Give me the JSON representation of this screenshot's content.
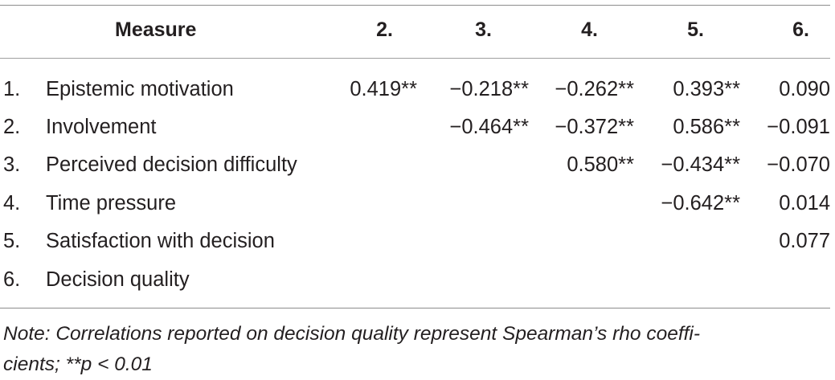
{
  "table": {
    "header": {
      "measure": "Measure",
      "columns": [
        "2.",
        "3.",
        "4.",
        "5.",
        "6."
      ]
    },
    "rows": [
      {
        "num": "1.",
        "label": "Epistemic motivation",
        "cells": [
          "0.419**",
          "−0.218**",
          "−0.262**",
          "0.393**",
          "0.090"
        ]
      },
      {
        "num": "2.",
        "label": "Involvement",
        "cells": [
          "",
          "−0.464**",
          "−0.372**",
          "0.586**",
          "−0.091"
        ]
      },
      {
        "num": "3.",
        "label": "Perceived decision difficulty",
        "cells": [
          "",
          "",
          "0.580**",
          "−0.434**",
          "−0.070"
        ]
      },
      {
        "num": "4.",
        "label": "Time pressure",
        "cells": [
          "",
          "",
          "",
          "−0.642**",
          "0.014"
        ]
      },
      {
        "num": "5.",
        "label": "Satisfaction with decision",
        "cells": [
          "",
          "",
          "",
          "",
          "0.077"
        ]
      },
      {
        "num": "6.",
        "label": "Decision quality",
        "cells": [
          "",
          "",
          "",
          "",
          ""
        ]
      }
    ],
    "note_line1": "Note: Correlations reported on decision quality represent Spearman’s rho coeffi-",
    "note_line2": "cients; **p < 0.01"
  }
}
